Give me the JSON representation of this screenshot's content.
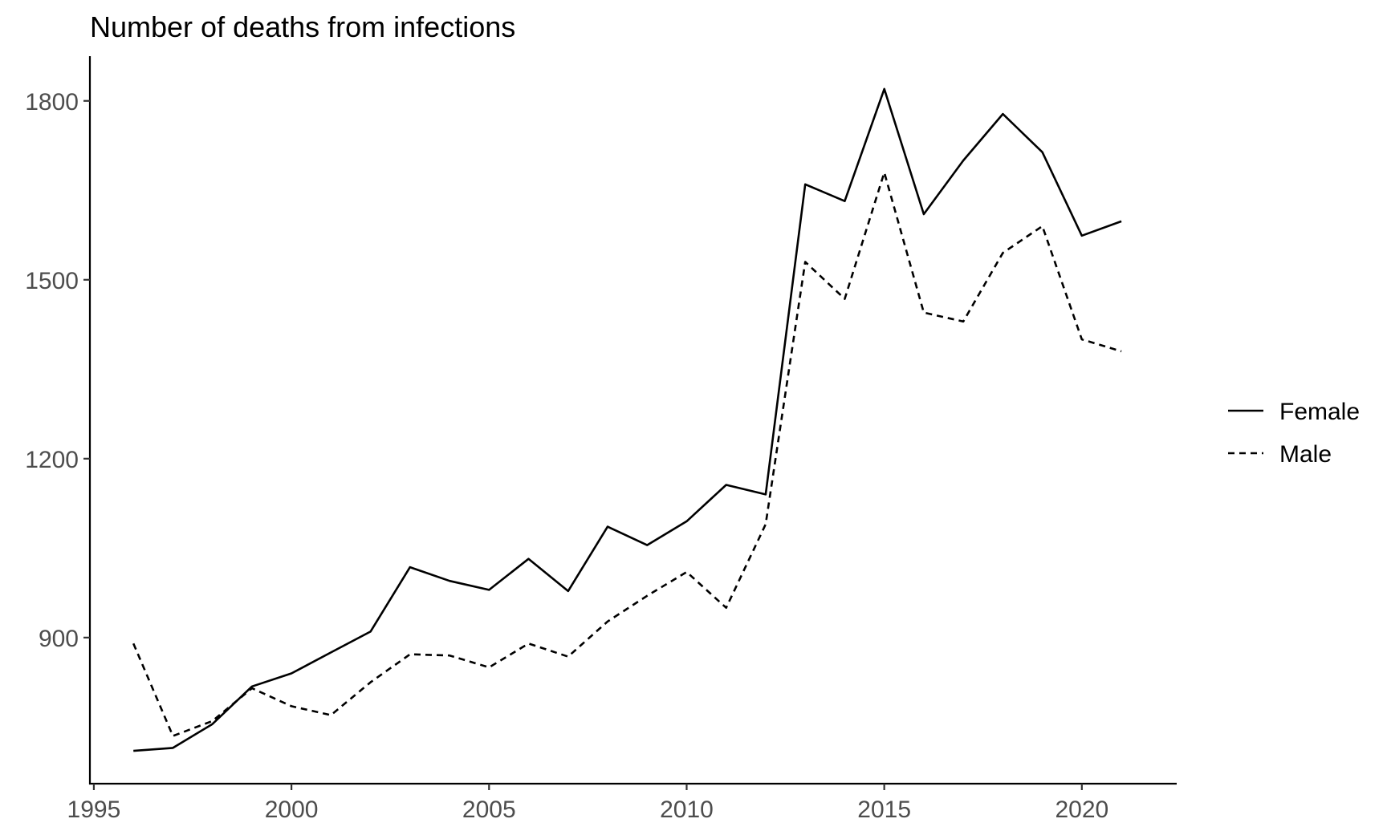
{
  "chart_data": {
    "type": "line",
    "title": "Number of deaths from infections",
    "xlabel": "",
    "ylabel": "",
    "xlim": [
      1994.9,
      2022.4
    ],
    "ylim": [
      655,
      1875
    ],
    "x_ticks": [
      1995,
      2000,
      2005,
      2010,
      2015,
      2020
    ],
    "y_ticks": [
      900,
      1200,
      1500,
      1800
    ],
    "grid": false,
    "legend_position": "right",
    "x": [
      1996,
      1997,
      1998,
      1999,
      2000,
      2001,
      2002,
      2003,
      2004,
      2005,
      2006,
      2007,
      2008,
      2009,
      2010,
      2011,
      2012,
      2013,
      2014,
      2015,
      2016,
      2017,
      2018,
      2019,
      2020,
      2021
    ],
    "series": [
      {
        "name": "Female",
        "linetype": "solid",
        "color": "#000000",
        "values": [
          710,
          715,
          755,
          818,
          840,
          875,
          910,
          1018,
          995,
          980,
          1032,
          978,
          1086,
          1055,
          1095,
          1156,
          1140,
          1660,
          1632,
          1820,
          1610,
          1700,
          1778,
          1714,
          1574,
          1598
        ]
      },
      {
        "name": "Male",
        "linetype": "dashed",
        "color": "#000000",
        "values": [
          890,
          735,
          760,
          815,
          785,
          770,
          825,
          872,
          870,
          850,
          890,
          868,
          927,
          970,
          1010,
          950,
          1090,
          1530,
          1468,
          1680,
          1445,
          1430,
          1545,
          1590,
          1400,
          1380
        ]
      }
    ]
  }
}
